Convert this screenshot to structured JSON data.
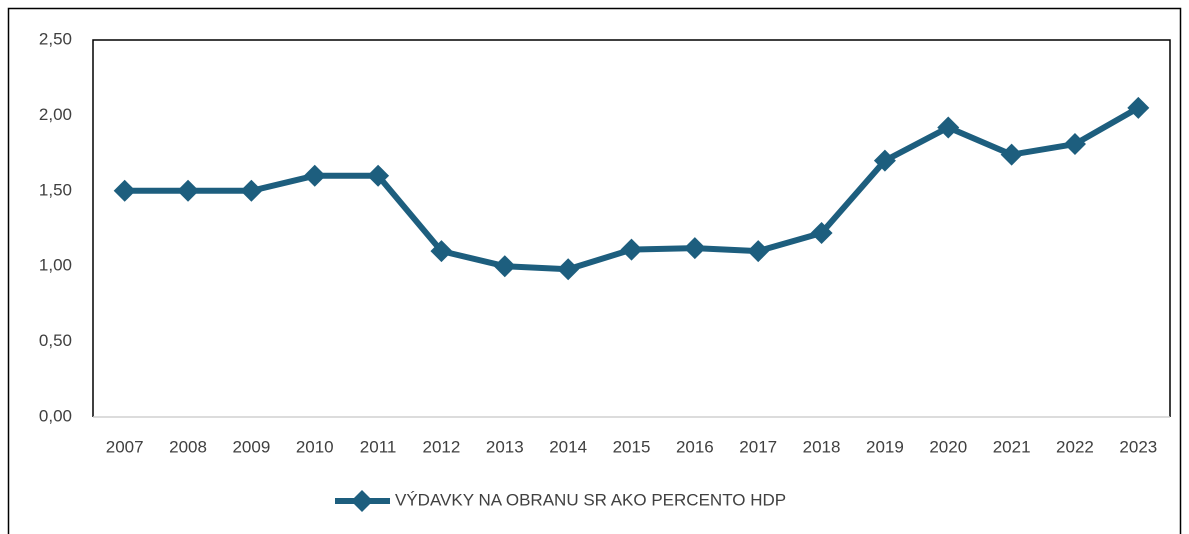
{
  "chart_data": {
    "type": "line",
    "categories": [
      "2007",
      "2008",
      "2009",
      "2010",
      "2011",
      "2012",
      "2013",
      "2014",
      "2015",
      "2016",
      "2017",
      "2018",
      "2019",
      "2020",
      "2021",
      "2022",
      "2023"
    ],
    "series": [
      {
        "name": "VÝDAVKY NA OBRANU SR AKO PERCENTO HDP",
        "color": "#1d5e7e",
        "values": [
          1.5,
          1.5,
          1.5,
          1.6,
          1.6,
          1.1,
          1.0,
          0.98,
          1.11,
          1.12,
          1.1,
          1.22,
          1.7,
          1.92,
          1.74,
          1.81,
          2.05
        ]
      }
    ],
    "ylim": [
      0,
      2.5
    ],
    "yticks": [
      {
        "value": 0,
        "label": "0,00"
      },
      {
        "value": 0.5,
        "label": "0,50"
      },
      {
        "value": 1,
        "label": "1,00"
      },
      {
        "value": 1.5,
        "label": "1,50"
      },
      {
        "value": 2,
        "label": "2,00"
      },
      {
        "value": 2.5,
        "label": "2,50"
      }
    ],
    "grid": false,
    "legend": "bottom"
  }
}
